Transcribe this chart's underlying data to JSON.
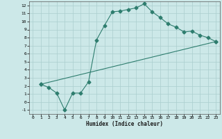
{
  "xlabel": "Humidex (Indice chaleur)",
  "bg_color": "#cce8e8",
  "line_color": "#2e7d6e",
  "grid_color": "#aacece",
  "xlim": [
    -0.5,
    23.5
  ],
  "ylim": [
    -1.5,
    12.5
  ],
  "xticks": [
    0,
    1,
    2,
    3,
    4,
    5,
    6,
    7,
    8,
    9,
    10,
    11,
    12,
    13,
    14,
    15,
    16,
    17,
    18,
    19,
    20,
    21,
    22,
    23
  ],
  "yticks": [
    -1,
    0,
    1,
    2,
    3,
    4,
    5,
    6,
    7,
    8,
    9,
    10,
    11,
    12
  ],
  "line1_x": [
    1,
    2,
    3,
    4,
    5,
    6,
    7,
    8,
    9,
    10,
    11,
    12,
    13,
    14,
    15,
    16,
    17,
    18,
    19,
    20,
    21,
    22,
    23
  ],
  "line1_y": [
    2.2,
    1.8,
    1.1,
    -1.0,
    1.1,
    1.1,
    2.5,
    7.7,
    9.5,
    11.2,
    11.3,
    11.5,
    11.7,
    12.2,
    11.2,
    10.5,
    9.7,
    9.3,
    8.7,
    8.8,
    8.3,
    8.0,
    7.5
  ],
  "line2_x": [
    1,
    23
  ],
  "line2_y": [
    2.2,
    7.5
  ],
  "markersize": 2.5,
  "linewidth": 0.8
}
